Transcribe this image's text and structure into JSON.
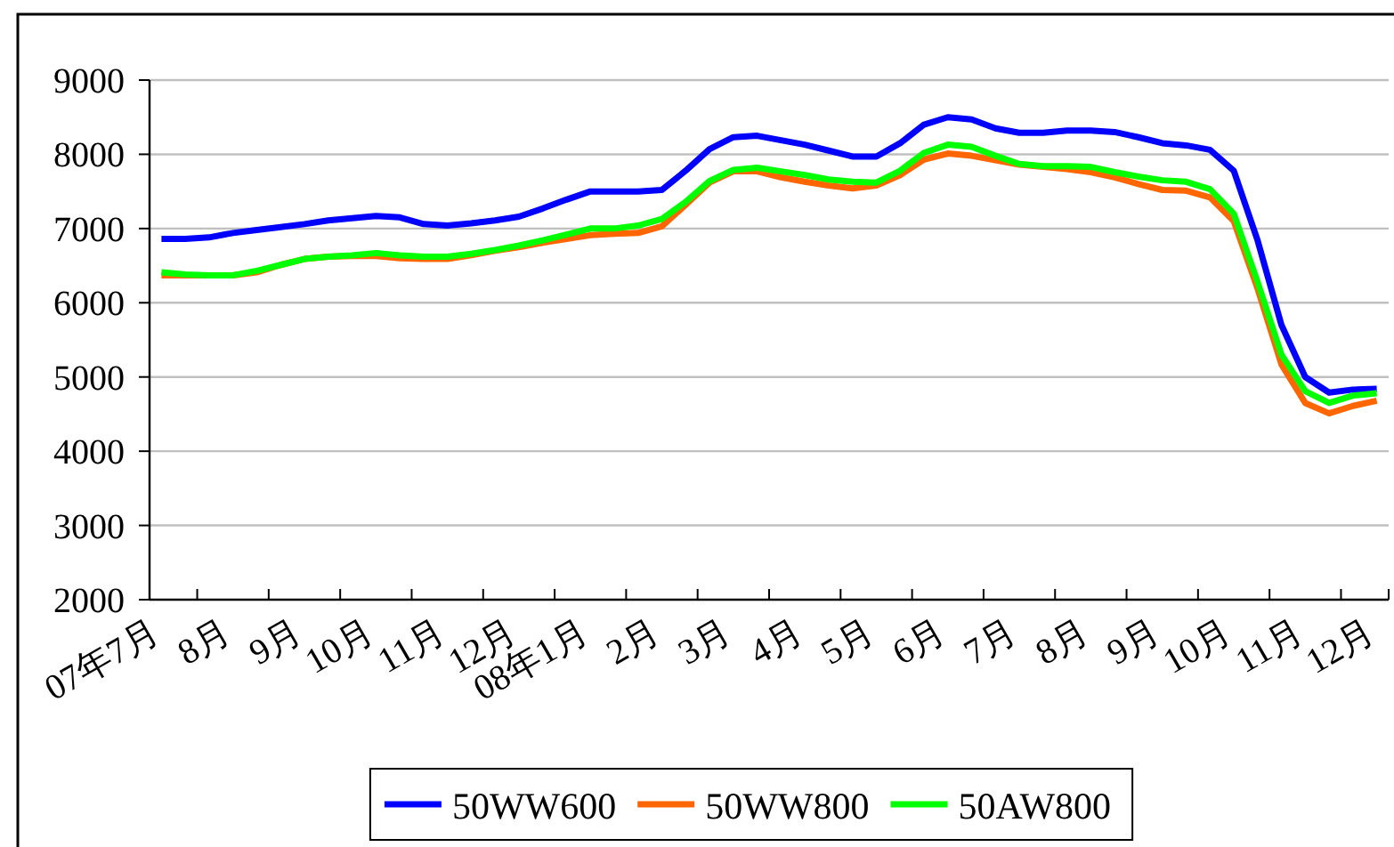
{
  "chart_data": {
    "type": "line",
    "categories": [
      "07年7月",
      null,
      null,
      "8月",
      null,
      null,
      "9月",
      null,
      null,
      "10月",
      null,
      null,
      "11月",
      null,
      null,
      "12月",
      null,
      null,
      "08年1月",
      null,
      null,
      "2月",
      null,
      null,
      "3月",
      null,
      null,
      "4月",
      null,
      null,
      "5月",
      null,
      null,
      "6月",
      null,
      null,
      "7月",
      null,
      null,
      "8月",
      null,
      null,
      "9月",
      null,
      null,
      "10月",
      null,
      null,
      "11月",
      null,
      null,
      "12月"
    ],
    "ylim": [
      2000,
      9000
    ],
    "yticks": [
      2000,
      3000,
      4000,
      5000,
      6000,
      7000,
      8000,
      9000
    ],
    "grid": "y",
    "legend": "bottom",
    "line_style": "solid",
    "series": [
      {
        "name": "50WW600",
        "color": "#0000ff",
        "values": [
          6860,
          6860,
          6880,
          6940,
          6980,
          7020,
          7060,
          7110,
          7140,
          7170,
          7150,
          7060,
          7040,
          7070,
          7110,
          7160,
          7270,
          7390,
          7500,
          7500,
          7500,
          7520,
          7780,
          8070,
          8230,
          8250,
          8190,
          8130,
          8050,
          7970,
          7970,
          8150,
          8400,
          8500,
          8470,
          8350,
          8290,
          8290,
          8320,
          8320,
          8300,
          8230,
          8150,
          8120,
          8060,
          7780,
          6840,
          5700,
          5000,
          4790,
          4830,
          4840
        ]
      },
      {
        "name": "50WW800",
        "color": "#ff6600",
        "values": [
          6370,
          6370,
          6370,
          6370,
          6410,
          6510,
          6590,
          6620,
          6630,
          6630,
          6600,
          6590,
          6590,
          6640,
          6700,
          6750,
          6810,
          6860,
          6910,
          6930,
          6940,
          7030,
          7320,
          7620,
          7770,
          7770,
          7690,
          7630,
          7580,
          7540,
          7580,
          7720,
          7930,
          8010,
          7980,
          7920,
          7860,
          7830,
          7800,
          7760,
          7690,
          7600,
          7520,
          7510,
          7420,
          7100,
          6190,
          5170,
          4650,
          4510,
          4610,
          4680
        ]
      },
      {
        "name": "50AW800",
        "color": "#00ff00",
        "values": [
          6410,
          6380,
          6370,
          6370,
          6430,
          6510,
          6590,
          6620,
          6640,
          6670,
          6640,
          6620,
          6620,
          6660,
          6710,
          6770,
          6840,
          6920,
          7000,
          7000,
          7040,
          7130,
          7360,
          7640,
          7790,
          7820,
          7770,
          7720,
          7660,
          7630,
          7620,
          7780,
          8020,
          8130,
          8100,
          7980,
          7870,
          7840,
          7840,
          7830,
          7760,
          7700,
          7650,
          7630,
          7530,
          7200,
          6280,
          5300,
          4810,
          4650,
          4750,
          4780
        ]
      }
    ]
  }
}
